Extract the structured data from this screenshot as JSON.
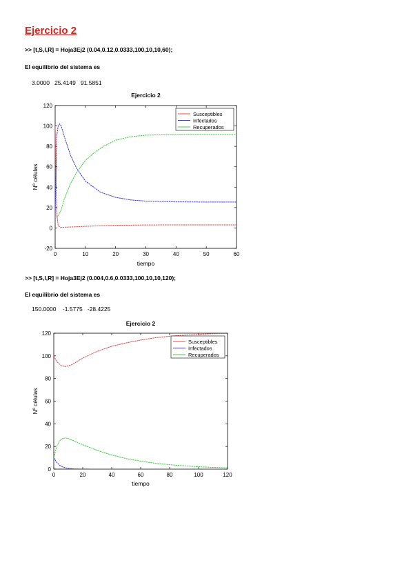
{
  "page": {
    "heading": "Ejercicio 2",
    "blocks": [
      {
        "command": ">> [t,S,I,R] = Hoja3Ej2 (0.04,0.12,0.0333,100,10,10,60);",
        "equilibrium_text": "El equilibrio del sistema es",
        "equilibrium_values": "3.0000   25.4149   91.5851"
      },
      {
        "command": ">> [t,S,I,R] = Hoja3Ej2 (0.004,0.6,0.0333,100,10,10,120);",
        "equilibrium_text": "El equilibrio del sistema es",
        "equilibrium_values": "150.0000    -1.5775   -28.4225"
      }
    ]
  },
  "chart_data": [
    {
      "type": "line",
      "title": "Ejercicio 2",
      "xlabel": "tiempo",
      "ylabel": "Nº células",
      "xlim": [
        0,
        60
      ],
      "ylim": [
        -20,
        120
      ],
      "xticks": [
        0,
        10,
        20,
        30,
        40,
        50,
        60
      ],
      "yticks": [
        -20,
        0,
        20,
        40,
        60,
        80,
        100,
        120
      ],
      "legend_position": "top-right",
      "series": [
        {
          "name": "Susceptibles",
          "color": "#e8484a",
          "x": [
            0,
            0.5,
            1,
            2,
            4,
            6,
            10,
            15,
            20,
            30,
            40,
            50,
            60
          ],
          "y": [
            100,
            15,
            2,
            0.5,
            0.8,
            1,
            1.6,
            2.2,
            2.6,
            2.9,
            3,
            3,
            3
          ]
        },
        {
          "name": "Infectados",
          "color": "#3b3bde",
          "x": [
            0,
            0.5,
            1,
            1.5,
            2,
            3,
            5,
            7,
            10,
            15,
            20,
            25,
            30,
            40,
            50,
            60
          ],
          "y": [
            10,
            90,
            100,
            102,
            100,
            90,
            72,
            59,
            46,
            35,
            30,
            27.5,
            26.3,
            25.6,
            25.4,
            25.4
          ]
        },
        {
          "name": "Recuperados",
          "color": "#3fd13f",
          "x": [
            0,
            1,
            2,
            3,
            5,
            7,
            10,
            13,
            16,
            20,
            25,
            30,
            40,
            50,
            60
          ],
          "y": [
            10,
            12,
            18,
            28,
            43,
            54,
            66,
            74,
            80,
            86,
            89.5,
            91,
            91.5,
            91.6,
            91.6
          ]
        }
      ]
    },
    {
      "type": "line",
      "title": "Ejercicio 2",
      "xlabel": "tiempo",
      "ylabel": "Nº células",
      "xlim": [
        0,
        120
      ],
      "ylim": [
        0,
        120
      ],
      "xticks": [
        0,
        20,
        40,
        60,
        80,
        100,
        120
      ],
      "yticks": [
        0,
        20,
        40,
        60,
        80,
        100,
        120
      ],
      "legend_position": "top-right",
      "series": [
        {
          "name": "Susceptibles",
          "color": "#e8484a",
          "x": [
            0,
            2,
            5,
            8,
            12,
            20,
            30,
            40,
            50,
            60,
            70,
            80,
            90,
            100,
            110,
            120
          ],
          "y": [
            100,
            95,
            91.5,
            90.5,
            92,
            98,
            104,
            108.5,
            111.5,
            114,
            116,
            117.3,
            118.3,
            119,
            119.5,
            119.8
          ]
        },
        {
          "name": "Infectados",
          "color": "#3b3bde",
          "x": [
            0,
            2,
            4,
            6,
            8,
            10,
            14,
            20,
            30,
            40,
            60,
            80,
            100,
            120
          ],
          "y": [
            10,
            6,
            3.5,
            2,
            1.2,
            0.6,
            0.2,
            0.05,
            0,
            0,
            0,
            0,
            0,
            0
          ]
        },
        {
          "name": "Recuperados",
          "color": "#3fd13f",
          "x": [
            0,
            2,
            4,
            6,
            8,
            10,
            14,
            20,
            30,
            40,
            50,
            60,
            70,
            80,
            90,
            100,
            110,
            120
          ],
          "y": [
            10,
            20,
            25,
            27,
            27.5,
            27,
            25,
            21.5,
            16.5,
            12.5,
            9.3,
            7,
            5.2,
            3.9,
            2.9,
            2.1,
            1.5,
            1.1
          ]
        }
      ]
    }
  ]
}
